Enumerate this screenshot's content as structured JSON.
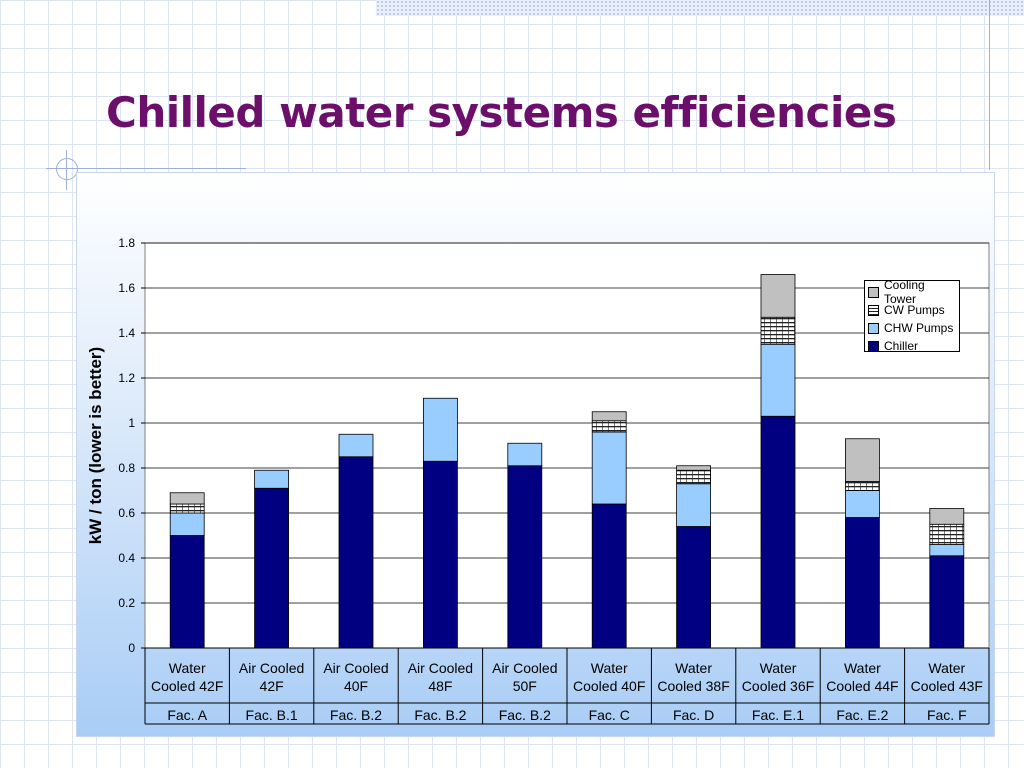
{
  "slide": {
    "title": "Chilled water systems efficiencies"
  },
  "colors": {
    "title": "#6b0f6b",
    "chiller": "#000080",
    "chw_pumps": "#99ccff",
    "cw_pumps": "#202020",
    "cooling_tower": "#c0c0c0"
  },
  "chart_data": {
    "type": "bar",
    "stacked": true,
    "ylabel": "kW / ton (lower is better)",
    "ylim": [
      0,
      1.8
    ],
    "yticks": [
      "0",
      "0.2",
      "0.4",
      "0.6",
      "0.8",
      "1",
      "1.2",
      "1.4",
      "1.6",
      "1.8"
    ],
    "grid": true,
    "legend_position": "top-right",
    "categories": [
      {
        "label_line1": "Water",
        "label_line2": "Cooled 42F",
        "facility": "Fac. A"
      },
      {
        "label_line1": "Air Cooled",
        "label_line2": "42F",
        "facility": "Fac. B.1"
      },
      {
        "label_line1": "Air Cooled",
        "label_line2": "40F",
        "facility": "Fac. B.2"
      },
      {
        "label_line1": "Air Cooled",
        "label_line2": "48F",
        "facility": "Fac. B.2"
      },
      {
        "label_line1": "Air Cooled",
        "label_line2": "50F",
        "facility": "Fac. B.2"
      },
      {
        "label_line1": "Water",
        "label_line2": "Cooled 40F",
        "facility": "Fac. C"
      },
      {
        "label_line1": "Water",
        "label_line2": "Cooled 38F",
        "facility": "Fac. D"
      },
      {
        "label_line1": "Water",
        "label_line2": "Cooled 36F",
        "facility": "Fac. E.1"
      },
      {
        "label_line1": "Water",
        "label_line2": "Cooled 44F",
        "facility": "Fac. E.2"
      },
      {
        "label_line1": "Water",
        "label_line2": "Cooled 43F",
        "facility": "Fac. F"
      }
    ],
    "series": [
      {
        "name": "Chiller",
        "values": [
          0.5,
          0.71,
          0.85,
          0.83,
          0.81,
          0.64,
          0.54,
          1.03,
          0.58,
          0.41
        ]
      },
      {
        "name": "CHW Pumps",
        "values": [
          0.1,
          0.08,
          0.1,
          0.28,
          0.1,
          0.32,
          0.19,
          0.32,
          0.12,
          0.05
        ]
      },
      {
        "name": "CW Pumps",
        "values": [
          0.04,
          0.0,
          0.0,
          0.0,
          0.0,
          0.05,
          0.06,
          0.12,
          0.04,
          0.09
        ]
      },
      {
        "name": "Cooling Tower",
        "values": [
          0.05,
          0.0,
          0.0,
          0.0,
          0.0,
          0.04,
          0.02,
          0.19,
          0.19,
          0.07
        ]
      }
    ]
  }
}
